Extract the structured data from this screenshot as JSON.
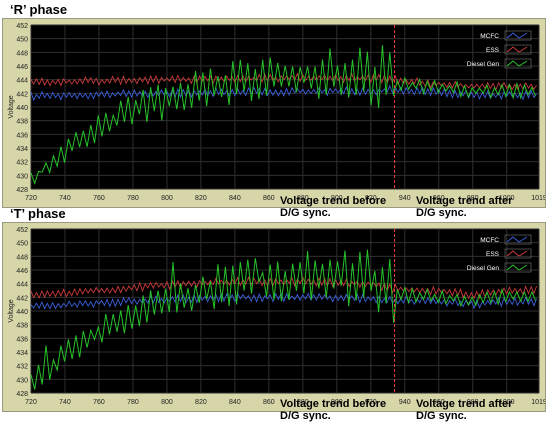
{
  "chart_data": [
    {
      "type": "line",
      "title": "‘R’ phase",
      "ylabel": "Voltage",
      "xlim": [
        720,
        1019
      ],
      "ylim": [
        428,
        452
      ],
      "xticks": [
        720,
        740,
        760,
        780,
        800,
        820,
        840,
        860,
        880,
        900,
        920,
        940,
        960,
        980,
        1000,
        1019
      ],
      "yticks": [
        428,
        430,
        432,
        434,
        436,
        438,
        440,
        442,
        444,
        446,
        448,
        450,
        452
      ],
      "legend_position": "top-right",
      "sync_marker_x": 934,
      "annotations": [
        "Voltage trend before D/G sync.",
        "Voltage trend after D/G sync."
      ],
      "series": [
        {
          "name": "MCFC",
          "color": "#3a5fd9",
          "x": [
            720,
            760,
            800,
            840,
            880,
            920,
            934,
            960,
            980,
            1000,
            1019
          ],
          "y": [
            441.6,
            441.8,
            442.0,
            442.2,
            442.3,
            442.3,
            442.5,
            442.2,
            441.7,
            441.8,
            441.7
          ]
        },
        {
          "name": "ESS",
          "color": "#c83a3a",
          "x": [
            720,
            760,
            800,
            840,
            880,
            920,
            934,
            960,
            980,
            1000,
            1019
          ],
          "y": [
            443.6,
            443.8,
            444.0,
            444.1,
            444.3,
            444.2,
            444.0,
            443.3,
            443.0,
            443.1,
            442.9
          ]
        },
        {
          "name": "Diesel Gen",
          "color": "#27c22a",
          "x": [
            720,
            740,
            760,
            780,
            800,
            820,
            840,
            860,
            880,
            900,
            920,
            934,
            960,
            980,
            1000,
            1019
          ],
          "y": [
            429.0,
            433.5,
            437.0,
            439.5,
            441.0,
            442.5,
            443.5,
            444.2,
            444.6,
            444.8,
            444.6,
            443.5,
            442.8,
            442.4,
            442.4,
            442.3
          ]
        }
      ]
    },
    {
      "type": "line",
      "title": "‘T’ phase",
      "ylabel": "Voltage",
      "xlim": [
        720,
        1019
      ],
      "ylim": [
        428,
        452
      ],
      "xticks": [
        720,
        740,
        760,
        780,
        800,
        820,
        840,
        860,
        880,
        900,
        920,
        940,
        960,
        980,
        1000,
        1019
      ],
      "yticks": [
        428,
        430,
        432,
        434,
        436,
        438,
        440,
        442,
        444,
        446,
        448,
        450,
        452
      ],
      "legend_position": "top-right",
      "sync_marker_x": 934,
      "annotations": [
        "Voltage trend before D/G sync.",
        "Voltage trend after D/G sync."
      ],
      "series": [
        {
          "name": "MCFC",
          "color": "#3a5fd9",
          "x": [
            720,
            760,
            800,
            840,
            880,
            920,
            934,
            960,
            980,
            1000,
            1019
          ],
          "y": [
            440.6,
            441.2,
            441.7,
            442.0,
            442.0,
            441.8,
            441.5,
            441.4,
            441.0,
            441.4,
            441.4
          ]
        },
        {
          "name": "ESS",
          "color": "#c83a3a",
          "x": [
            720,
            760,
            800,
            840,
            880,
            920,
            934,
            960,
            980,
            1000,
            1019
          ],
          "y": [
            442.3,
            443.0,
            443.8,
            444.3,
            444.3,
            444.0,
            443.2,
            443.0,
            442.4,
            443.0,
            443.1
          ]
        },
        {
          "name": "Diesel Gen",
          "color": "#27c22a",
          "x": [
            720,
            740,
            760,
            780,
            800,
            820,
            840,
            860,
            880,
            900,
            920,
            934,
            960,
            980,
            1000,
            1019
          ],
          "y": [
            429.5,
            433.5,
            437.0,
            439.5,
            441.5,
            443.0,
            444.0,
            444.5,
            445.0,
            445.0,
            444.8,
            442.5,
            442.0,
            441.6,
            442.2,
            442.0
          ]
        }
      ]
    }
  ]
}
